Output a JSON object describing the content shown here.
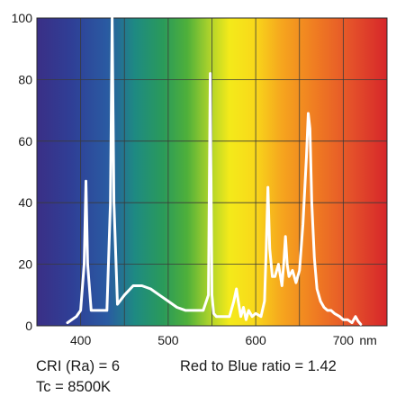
{
  "chart_data": {
    "type": "line",
    "title": "",
    "xlabel": "",
    "ylabel": "",
    "x_unit_label": "nm",
    "xlim": [
      350,
      750
    ],
    "ylim": [
      0,
      100
    ],
    "x_ticks": [
      400,
      500,
      600,
      700
    ],
    "y_ticks": [
      0,
      20,
      40,
      60,
      80,
      100
    ],
    "grid": true,
    "background": "visible-spectrum gradient (violet → blue → green → yellow → orange → red)",
    "line_color": "#ffffff",
    "series": [
      {
        "x": [
          385,
          395,
          400,
          404,
          406,
          408,
          412,
          420,
          430,
          434,
          436,
          438,
          442,
          450,
          460,
          470,
          480,
          490,
          500,
          510,
          520,
          530,
          540,
          546,
          548,
          550,
          552,
          555,
          560,
          570,
          575,
          578,
          580,
          583,
          586,
          589,
          592,
          596,
          600,
          606,
          610,
          612,
          614,
          616,
          619,
          622,
          626,
          630,
          632,
          634,
          636,
          638,
          642,
          646,
          650,
          654,
          658,
          660,
          662,
          664,
          667,
          670,
          674,
          678,
          682,
          686,
          690,
          696,
          700,
          705,
          710,
          712,
          714,
          717,
          720
        ],
        "y": [
          1,
          3,
          5,
          20,
          47,
          20,
          5,
          5,
          5,
          40,
          100,
          40,
          7,
          10,
          13,
          13,
          12,
          10,
          8,
          6,
          5,
          5,
          5,
          10,
          82,
          10,
          4,
          3,
          3,
          3,
          8,
          12,
          8,
          3,
          6,
          2,
          5,
          3,
          4,
          3,
          8,
          25,
          45,
          25,
          16,
          16,
          20,
          13,
          20,
          29,
          20,
          16,
          18,
          14,
          18,
          33,
          55,
          69,
          64,
          40,
          22,
          12,
          8,
          6,
          5,
          5,
          4,
          3,
          2,
          2,
          1,
          2,
          3,
          1.5,
          0.5
        ]
      }
    ]
  },
  "captions": {
    "cri": "CRI (Ra) = 6",
    "ratio": "Red to Blue ratio = 1.42",
    "tc": "Tc = 8500K"
  }
}
